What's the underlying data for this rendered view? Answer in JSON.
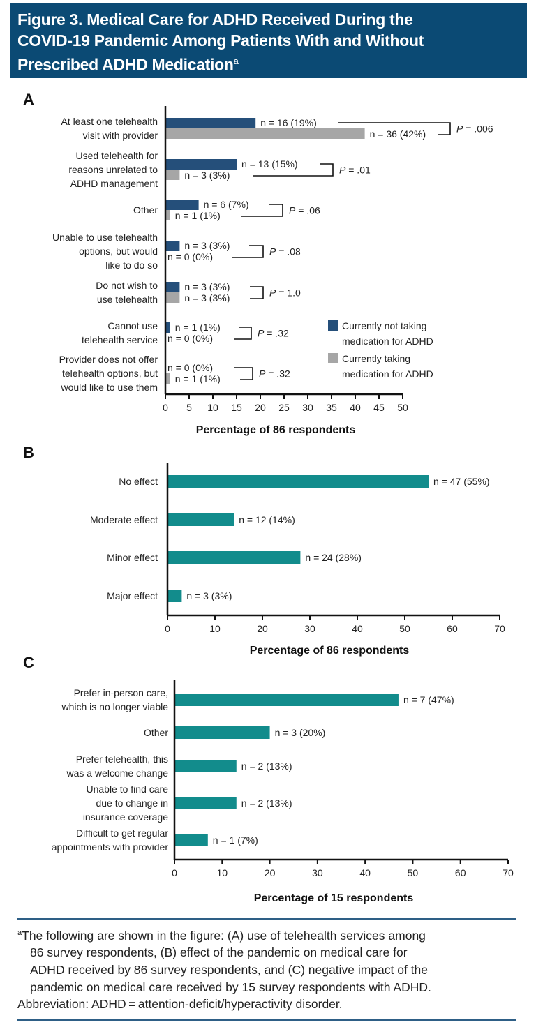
{
  "header": {
    "title_lines": [
      "Figure 3. Medical Care for ADHD Received During the",
      "COVID-19 Pandemic Among Patients With and Without",
      "Prescribed ADHD Medication"
    ],
    "title_sup": "a"
  },
  "colors": {
    "header_bg": "#0b4a74",
    "not_taking": "#254f7a",
    "taking": "#a6a6a6",
    "teal": "#128c8c",
    "rule": "#2e5f86"
  },
  "chart_data": [
    {
      "panel": "A",
      "type": "bar",
      "orientation": "horizontal",
      "xlabel": "Percentage of 86 respondents",
      "xlim": [
        0,
        50
      ],
      "xticks": [
        0,
        5,
        10,
        15,
        20,
        25,
        30,
        35,
        40,
        45,
        50
      ],
      "legend": {
        "position": "right",
        "entries": [
          {
            "lines": [
              "Currently not taking",
              "medication for ADHD"
            ],
            "series": "not_taking"
          },
          {
            "lines": [
              "Currently taking",
              "medication for ADHD"
            ],
            "series": "taking"
          }
        ]
      },
      "categories": [
        {
          "lines": [
            "At least one telehealth",
            "visit with provider"
          ],
          "not_taking": {
            "value": 19,
            "label": "n = 16 (19%)"
          },
          "taking": {
            "value": 42,
            "label": "n = 36 (42%)"
          },
          "p": "= .006"
        },
        {
          "lines": [
            "Used telehealth for",
            "reasons unrelated to",
            "ADHD management"
          ],
          "not_taking": {
            "value": 15,
            "label": "n = 13 (15%)"
          },
          "taking": {
            "value": 3,
            "label": "n = 3 (3%)"
          },
          "p": "= .01"
        },
        {
          "lines": [
            "Other"
          ],
          "not_taking": {
            "value": 7,
            "label": "n = 6 (7%)"
          },
          "taking": {
            "value": 1,
            "label": "n = 1 (1%)"
          },
          "p": "= .06"
        },
        {
          "lines": [
            "Unable to use telehealth",
            "options, but would",
            "like to do so"
          ],
          "not_taking": {
            "value": 3,
            "label": "n = 3 (3%)"
          },
          "taking": {
            "value": 0,
            "label": "n = 0 (0%)"
          },
          "p": "= .08"
        },
        {
          "lines": [
            "Do not wish to",
            "use telehealth"
          ],
          "not_taking": {
            "value": 3,
            "label": "n = 3 (3%)"
          },
          "taking": {
            "value": 3,
            "label": "n = 3 (3%)"
          },
          "p": "= 1.0"
        },
        {
          "lines": [
            "Cannot use",
            "telehealth service"
          ],
          "not_taking": {
            "value": 1,
            "label": "n = 1 (1%)"
          },
          "taking": {
            "value": 0,
            "label": "n = 0 (0%)"
          },
          "p": "= .32"
        },
        {
          "lines": [
            "Provider does not offer",
            "telehealth options, but",
            "would like to use them"
          ],
          "not_taking": {
            "value": 0,
            "label": "n = 0 (0%)"
          },
          "taking": {
            "value": 1,
            "label": "n = 1 (1%)"
          },
          "p": "= .32"
        }
      ],
      "p_symbol": "P"
    },
    {
      "panel": "B",
      "type": "bar",
      "orientation": "horizontal",
      "xlabel": "Percentage of 86 respondents",
      "xlim": [
        0,
        70
      ],
      "xticks": [
        0,
        10,
        20,
        30,
        40,
        50,
        60,
        70
      ],
      "categories": [
        {
          "lines": [
            "No effect"
          ],
          "value": 55,
          "label": "n = 47 (55%)"
        },
        {
          "lines": [
            "Moderate effect"
          ],
          "value": 14,
          "label": "n = 12 (14%)"
        },
        {
          "lines": [
            "Minor effect"
          ],
          "value": 28,
          "label": "n = 24 (28%)"
        },
        {
          "lines": [
            "Major effect"
          ],
          "value": 3,
          "label": "n = 3 (3%)"
        }
      ]
    },
    {
      "panel": "C",
      "type": "bar",
      "orientation": "horizontal",
      "xlabel": "Percentage of 15 respondents",
      "xlim": [
        0,
        70
      ],
      "xticks": [
        0,
        10,
        20,
        30,
        40,
        50,
        60,
        70
      ],
      "categories": [
        {
          "lines": [
            "Prefer in-person care,",
            "which is no longer viable"
          ],
          "value": 47,
          "label": "n = 7 (47%)"
        },
        {
          "lines": [
            "Other"
          ],
          "value": 20,
          "label": "n = 3 (20%)"
        },
        {
          "lines": [
            "Prefer telehealth, this",
            "was a welcome change"
          ],
          "value": 13,
          "label": "n = 2 (13%)"
        },
        {
          "lines": [
            "Unable to find care",
            "due to change in",
            "insurance coverage"
          ],
          "value": 13,
          "label": "n = 2 (13%)"
        },
        {
          "lines": [
            "Difficult to get regular",
            "appointments with provider"
          ],
          "value": 7,
          "label": "n = 1 (7%)"
        }
      ]
    }
  ],
  "footnote": {
    "sup": "a",
    "lines": [
      "The following are shown in the figure: (A) use of telehealth services among",
      "86 survey respondents, (B) effect of the pandemic on medical care for",
      "ADHD received by 86 survey respondents, and (C) negative impact of the",
      "pandemic on medical care received by 15 survey respondents with ADHD."
    ],
    "abbreviation": "Abbreviation: ADHD = attention-deficit/hyperactivity disorder."
  }
}
